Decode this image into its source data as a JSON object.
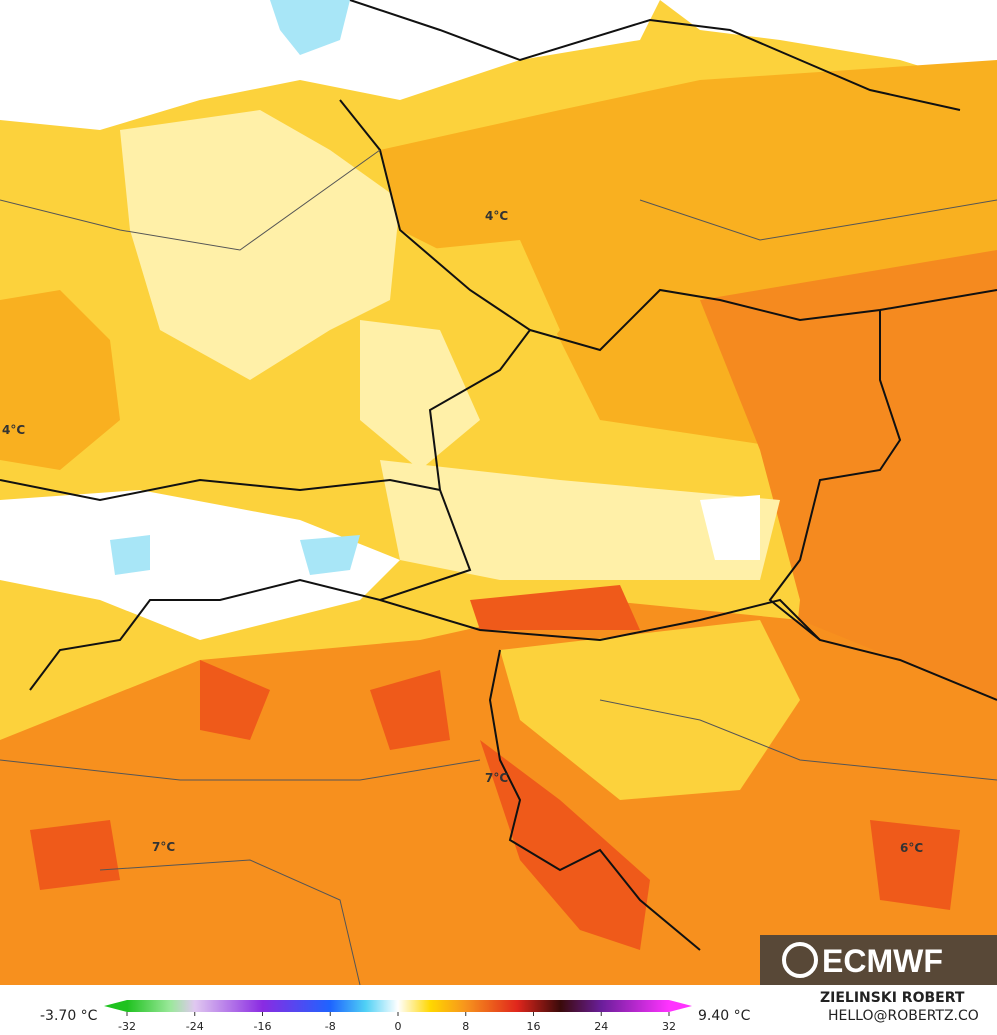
{
  "map": {
    "labels": [
      {
        "text": "4°C"
      },
      {
        "text": "4°C"
      },
      {
        "text": "7°C"
      },
      {
        "text": "7°C"
      },
      {
        "text": "6°C"
      }
    ],
    "logo": "ECMWF"
  },
  "colorbar": {
    "min_label": "-3.70 °C",
    "max_label": "9.40 °C",
    "ticks": [
      -32,
      -24,
      -16,
      -8,
      0,
      8,
      16,
      24,
      32
    ]
  },
  "credit": {
    "name": "ZIELINSKI ROBERT",
    "email": "HELLO@ROBERTZ.CO"
  }
}
